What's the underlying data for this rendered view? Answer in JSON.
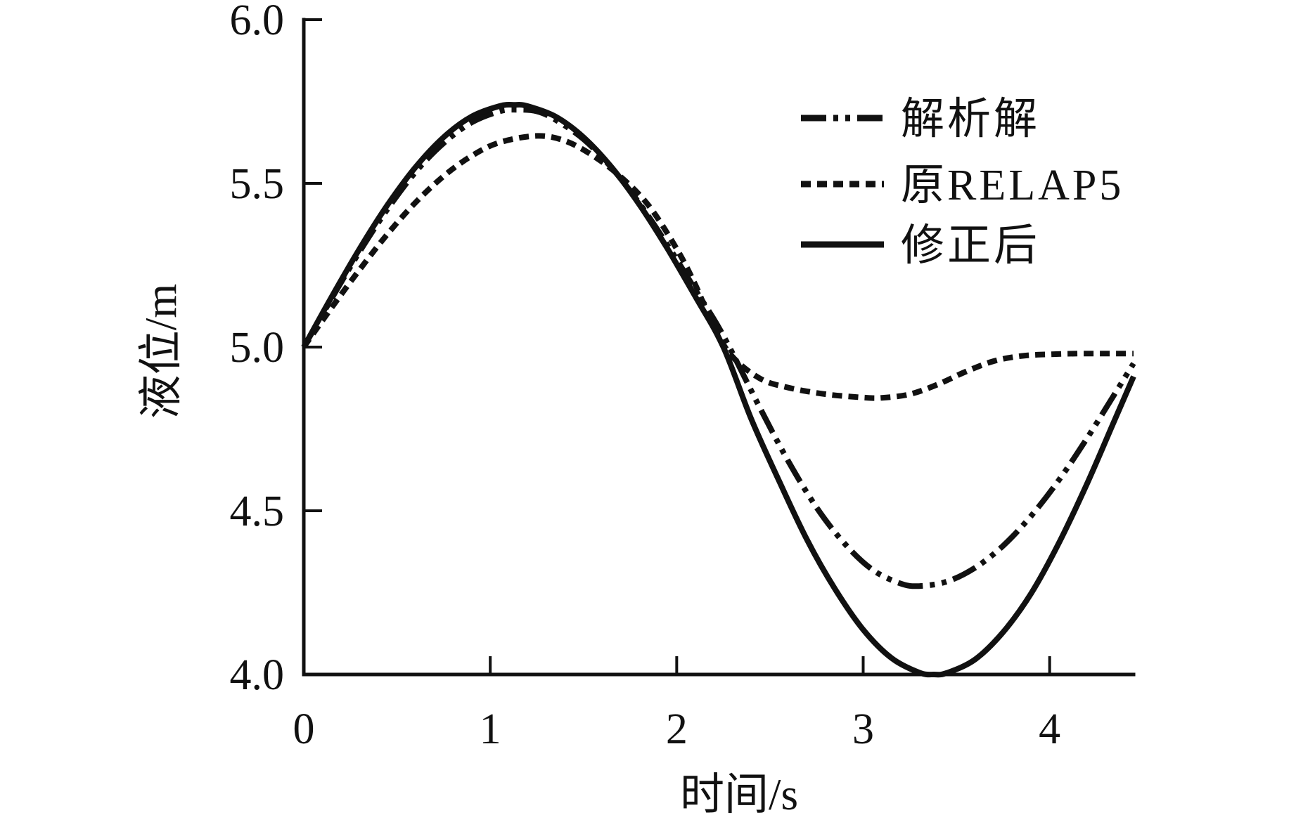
{
  "figure": {
    "background_color": "#ffffff",
    "ink_color": "#111111"
  },
  "chart_data": {
    "type": "line",
    "title": "",
    "xlabel": "时间/s",
    "ylabel": "液位/m",
    "xlim": [
      0,
      4.45
    ],
    "ylim": [
      4.0,
      6.0
    ],
    "grid": false,
    "legend_position": "upper right",
    "x_ticks": {
      "values": [
        0,
        1,
        2,
        3,
        4
      ],
      "labels": [
        "0",
        "1",
        "2",
        "3",
        "4"
      ]
    },
    "y_ticks": {
      "values": [
        4.0,
        4.5,
        5.0,
        5.5,
        6.0
      ],
      "labels": [
        "4.0",
        "4.5",
        "5.0",
        "5.5",
        "6.0"
      ]
    },
    "series": [
      {
        "name": "解析解",
        "slug": "analytical-solution",
        "line_style": "dash-dot-dot",
        "color": "#111111",
        "points": [
          [
            0,
            5.0
          ],
          [
            0.15,
            5.149
          ],
          [
            0.3,
            5.292
          ],
          [
            0.45,
            5.422
          ],
          [
            0.6,
            5.535
          ],
          [
            0.75,
            5.623
          ],
          [
            0.9,
            5.686
          ],
          [
            1.05,
            5.72
          ],
          [
            1.14,
            5.725
          ],
          [
            1.25,
            5.72
          ],
          [
            1.35,
            5.694
          ],
          [
            1.5,
            5.635
          ],
          [
            1.65,
            5.548
          ],
          [
            1.8,
            5.439
          ],
          [
            1.95,
            5.312
          ],
          [
            2.1,
            5.175
          ],
          [
            2.25,
            5.035
          ],
          [
            2.45,
            4.81
          ],
          [
            2.6,
            4.65
          ],
          [
            2.75,
            4.51
          ],
          [
            2.9,
            4.4
          ],
          [
            3.05,
            4.32
          ],
          [
            3.2,
            4.278
          ],
          [
            3.3,
            4.27
          ],
          [
            3.45,
            4.284
          ],
          [
            3.6,
            4.326
          ],
          [
            3.75,
            4.393
          ],
          [
            3.9,
            4.484
          ],
          [
            4.05,
            4.594
          ],
          [
            4.2,
            4.721
          ],
          [
            4.35,
            4.858
          ],
          [
            4.45,
            4.95
          ]
        ]
      },
      {
        "name": "原RELAP5",
        "slug": "original-relap5",
        "line_style": "dashed",
        "color": "#111111",
        "points": [
          [
            0,
            5.0
          ],
          [
            0.15,
            5.121
          ],
          [
            0.3,
            5.237
          ],
          [
            0.45,
            5.346
          ],
          [
            0.6,
            5.442
          ],
          [
            0.75,
            5.522
          ],
          [
            0.9,
            5.584
          ],
          [
            1.05,
            5.625
          ],
          [
            1.25,
            5.645
          ],
          [
            1.4,
            5.63
          ],
          [
            1.55,
            5.585
          ],
          [
            1.7,
            5.52
          ],
          [
            1.85,
            5.432
          ],
          [
            2.0,
            5.3
          ],
          [
            2.1,
            5.19
          ],
          [
            2.2,
            5.06
          ],
          [
            2.3,
            4.97
          ],
          [
            2.45,
            4.903
          ],
          [
            2.6,
            4.876
          ],
          [
            2.8,
            4.856
          ],
          [
            3.0,
            4.846
          ],
          [
            3.1,
            4.845
          ],
          [
            3.25,
            4.856
          ],
          [
            3.4,
            4.886
          ],
          [
            3.55,
            4.925
          ],
          [
            3.7,
            4.957
          ],
          [
            3.85,
            4.973
          ],
          [
            4.0,
            4.978
          ],
          [
            4.15,
            4.98
          ],
          [
            4.3,
            4.98
          ],
          [
            4.45,
            4.98
          ]
        ]
      },
      {
        "name": "修正后",
        "slug": "corrected",
        "line_style": "solid",
        "color": "#111111",
        "points": [
          [
            0,
            5.0
          ],
          [
            0.15,
            5.154
          ],
          [
            0.3,
            5.301
          ],
          [
            0.45,
            5.435
          ],
          [
            0.6,
            5.55
          ],
          [
            0.75,
            5.641
          ],
          [
            0.9,
            5.704
          ],
          [
            1.05,
            5.736
          ],
          [
            1.13,
            5.74
          ],
          [
            1.2,
            5.736
          ],
          [
            1.35,
            5.704
          ],
          [
            1.5,
            5.641
          ],
          [
            1.65,
            5.55
          ],
          [
            1.8,
            5.435
          ],
          [
            1.95,
            5.301
          ],
          [
            2.1,
            5.154
          ],
          [
            2.25,
            5.0
          ],
          [
            2.4,
            4.78
          ],
          [
            2.55,
            4.59
          ],
          [
            2.7,
            4.41
          ],
          [
            2.85,
            4.26
          ],
          [
            3.0,
            4.137
          ],
          [
            3.15,
            4.051
          ],
          [
            3.3,
            4.006
          ],
          [
            3.38,
            4.0
          ],
          [
            3.45,
            4.005
          ],
          [
            3.6,
            4.046
          ],
          [
            3.75,
            4.129
          ],
          [
            3.9,
            4.247
          ],
          [
            4.05,
            4.402
          ],
          [
            4.2,
            4.582
          ],
          [
            4.35,
            4.779
          ],
          [
            4.45,
            4.91
          ]
        ]
      }
    ]
  }
}
